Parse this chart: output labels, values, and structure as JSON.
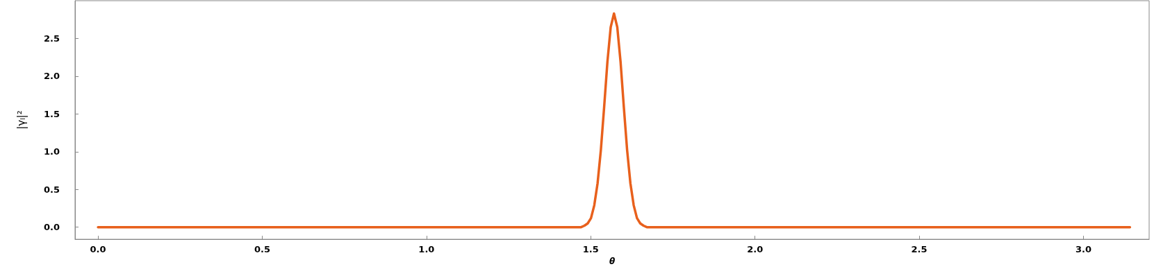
{
  "chart_data": {
    "type": "line",
    "xlabel": "θ",
    "ylabel": "|γₗ|²",
    "x": [
      0,
      1.4608,
      1.4708,
      1.4808,
      1.4908,
      1.5008,
      1.5108,
      1.5208,
      1.5308,
      1.5408,
      1.5508,
      1.5608,
      1.5708,
      1.5808,
      1.5908,
      1.6008,
      1.6108,
      1.6208,
      1.6308,
      1.6408,
      1.6508,
      1.6608,
      1.6708,
      1.6808,
      3.1416
    ],
    "series": [
      {
        "color": "#e8601c",
        "values": [
          0,
          0,
          0,
          0.02,
          0.05,
          0.12,
          0.29,
          0.58,
          1.02,
          1.59,
          2.19,
          2.65,
          2.83,
          2.65,
          2.19,
          1.59,
          1.02,
          0.58,
          0.29,
          0.12,
          0.05,
          0.02,
          0,
          0,
          0
        ]
      }
    ],
    "xlim": [
      -0.07,
      3.2
    ],
    "xticks": [
      {
        "value": 0,
        "label": "0.0"
      },
      0.5,
      {
        "value": 1,
        "label": "1.0"
      },
      1.5,
      {
        "value": 2,
        "label": "2.0"
      },
      2.5,
      {
        "value": 3,
        "label": "3.0"
      }
    ],
    "ylim": [
      -0.16,
      3.0
    ],
    "yticks": [
      {
        "value": 0,
        "label": "0.0"
      },
      0.5,
      {
        "value": 1,
        "label": "1.0"
      },
      1.5,
      {
        "value": 2,
        "label": "2.0"
      },
      2.5
    ],
    "grid": false,
    "marker": "none",
    "line_style": "solid"
  }
}
